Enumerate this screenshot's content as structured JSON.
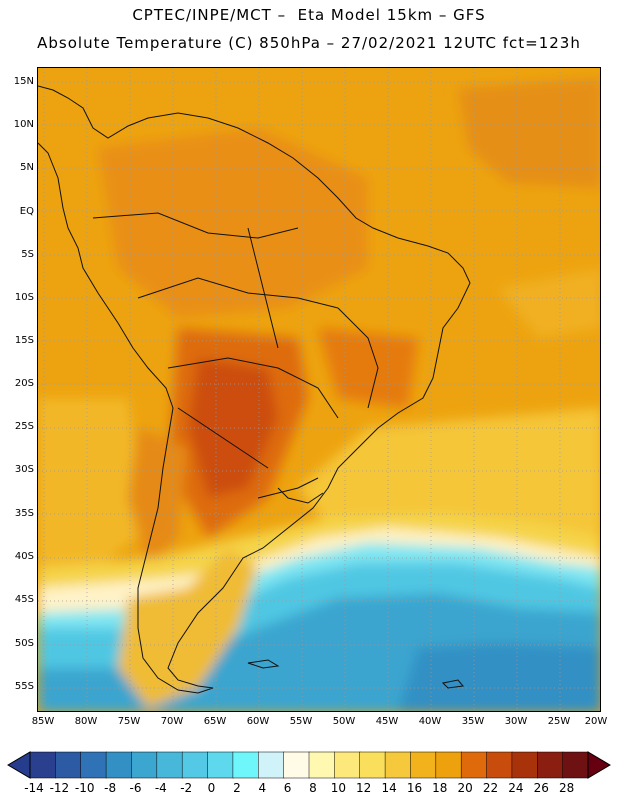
{
  "header": {
    "title_line1": "CPTEC/INPE/MCT –  Eta Model 15km – GFS",
    "title_line2": "Absolute Temperature (C) 850hPa – 27/02/2021 12UTC fct=123h"
  },
  "map": {
    "lat_labels": [
      "15N",
      "10N",
      "5N",
      "EQ",
      "5S",
      "10S",
      "15S",
      "20S",
      "25S",
      "30S",
      "35S",
      "40S",
      "45S",
      "50S",
      "55S"
    ],
    "lon_labels": [
      "85W",
      "80W",
      "75W",
      "70W",
      "65W",
      "60W",
      "55W",
      "50W",
      "45W",
      "40W",
      "35W",
      "30W",
      "25W",
      "20W"
    ]
  },
  "colorbar": {
    "labels": [
      "-14",
      "-12",
      "-10",
      "-8",
      "-6",
      "-4",
      "-2",
      "0",
      "2",
      "4",
      "6",
      "8",
      "10",
      "12",
      "14",
      "16",
      "18",
      "20",
      "22",
      "24",
      "26",
      "28"
    ],
    "colors": [
      "#2b3f8f",
      "#2c5aa3",
      "#2f73b6",
      "#3390c4",
      "#3ba6cf",
      "#47b8da",
      "#54c9e6",
      "#5ed8ec",
      "#6ef6fb",
      "#cff3f8",
      "#fffbe6",
      "#fff8b0",
      "#fde87c",
      "#fadf5c",
      "#f5c93b",
      "#f1b21b",
      "#eca10d",
      "#df6a0c",
      "#c84c0b",
      "#a83209",
      "#8a1e10",
      "#6e1112"
    ],
    "low_end_color": "#263c8c",
    "high_end_color": "#660010"
  }
}
